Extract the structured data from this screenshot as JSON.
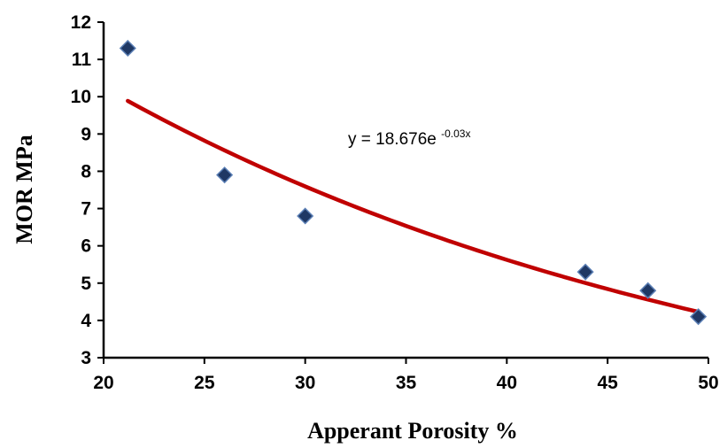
{
  "chart_data": {
    "type": "scatter",
    "title": "",
    "xlabel": "Apperant Porosity %",
    "ylabel": "MOR MPa",
    "xlim": [
      20,
      50
    ],
    "ylim": [
      3,
      12
    ],
    "x_ticks": [
      "20",
      "25",
      "30",
      "35",
      "40",
      "45",
      "50"
    ],
    "y_ticks": [
      "3",
      "4",
      "5",
      "6",
      "7",
      "8",
      "9",
      "10",
      "11",
      "12"
    ],
    "grid": false,
    "legend": "none",
    "series": [
      {
        "marker": "diamond",
        "color": "#1f3864",
        "points": [
          {
            "x": 21.2,
            "y": 11.3
          },
          {
            "x": 26.0,
            "y": 7.9
          },
          {
            "x": 30.0,
            "y": 6.8
          },
          {
            "x": 43.9,
            "y": 5.3
          },
          {
            "x": 47.0,
            "y": 4.8
          },
          {
            "x": 49.5,
            "y": 4.1
          }
        ]
      }
    ],
    "trendline": {
      "type": "exponential",
      "a": 18.676,
      "b": -0.03,
      "x_range": [
        21.2,
        49.5
      ],
      "color": "#c00000",
      "equation_base": "y = 18.676e",
      "equation_exponent": "-0.03x"
    }
  }
}
